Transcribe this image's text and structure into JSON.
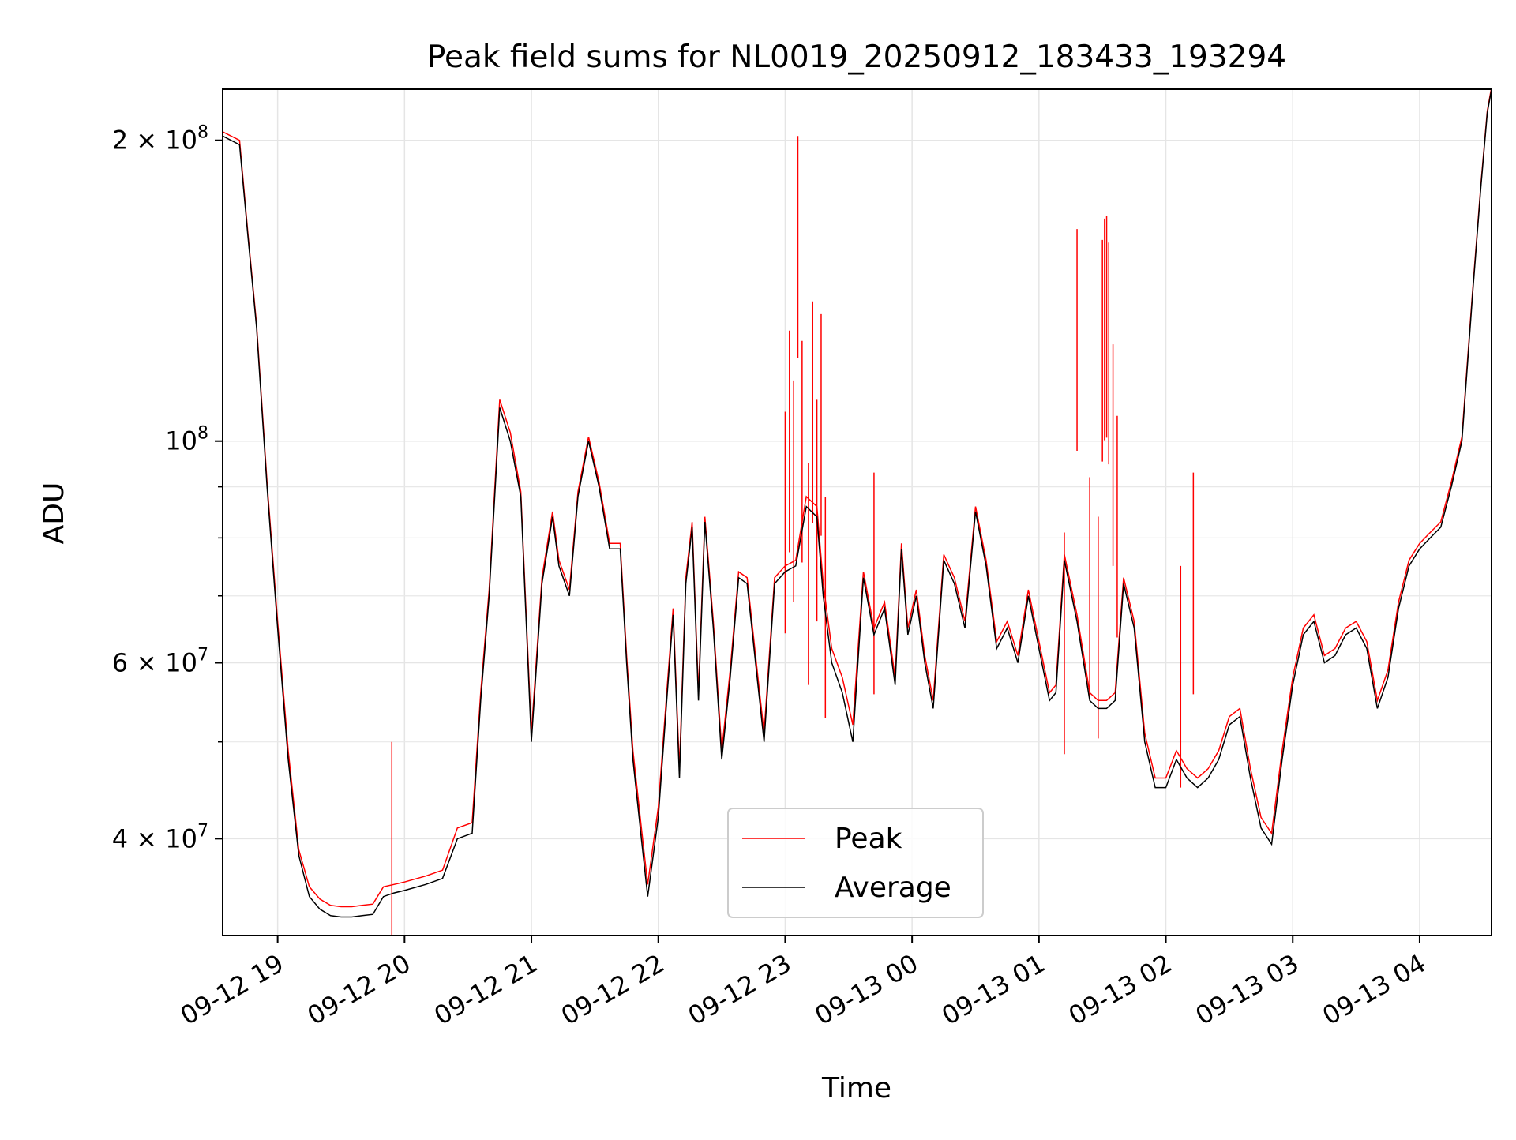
{
  "chart_data": {
    "type": "line",
    "title": "Peak field sums for NL0019_20250912_183433_193294",
    "xlabel": "Time",
    "ylabel": "ADU",
    "yscale": "log",
    "grid": true,
    "legend_position": "lower-center",
    "xlim": [
      "2025-09-12 18:34",
      "2025-09-13 04:34"
    ],
    "ylim": [
      32000000,
      225000000
    ],
    "x_ticks": [
      "09-12 19",
      "09-12 20",
      "09-12 21",
      "09-12 22",
      "09-12 23",
      "09-13 00",
      "09-13 01",
      "09-13 02",
      "09-13 03",
      "09-13 04"
    ],
    "x_tick_values": [
      "2025-09-12 19:00",
      "2025-09-12 20:00",
      "2025-09-12 21:00",
      "2025-09-12 22:00",
      "2025-09-12 23:00",
      "2025-09-13 00:00",
      "2025-09-13 01:00",
      "2025-09-13 02:00",
      "2025-09-13 03:00",
      "2025-09-13 04:00"
    ],
    "y_ticks": [
      {
        "value": 200000000,
        "mant": "2",
        "exp": "8"
      },
      {
        "value": 100000000,
        "mant": "",
        "exp": "8"
      },
      {
        "value": 60000000,
        "mant": "6",
        "exp": "7"
      },
      {
        "value": 40000000,
        "mant": "4",
        "exp": "7"
      }
    ],
    "y_minor_ticks": [
      50000000,
      70000000,
      80000000,
      90000000
    ],
    "colors": {
      "Peak": "#ff0000",
      "Average": "#000000"
    },
    "x": [
      "2025-09-12 18:34",
      "2025-09-12 18:42",
      "2025-09-12 18:46",
      "2025-09-12 18:50",
      "2025-09-12 18:55",
      "2025-09-12 19:00",
      "2025-09-12 19:05",
      "2025-09-12 19:10",
      "2025-09-12 19:15",
      "2025-09-12 19:20",
      "2025-09-12 19:25",
      "2025-09-12 19:30",
      "2025-09-12 19:35",
      "2025-09-12 19:40",
      "2025-09-12 19:45",
      "2025-09-12 19:50",
      "2025-09-12 19:55",
      "2025-09-12 20:00",
      "2025-09-12 20:10",
      "2025-09-12 20:18",
      "2025-09-12 20:25",
      "2025-09-12 20:32",
      "2025-09-12 20:36",
      "2025-09-12 20:40",
      "2025-09-12 20:45",
      "2025-09-12 20:50",
      "2025-09-12 20:55",
      "2025-09-12 21:00",
      "2025-09-12 21:05",
      "2025-09-12 21:10",
      "2025-09-12 21:13",
      "2025-09-12 21:18",
      "2025-09-12 21:22",
      "2025-09-12 21:27",
      "2025-09-12 21:32",
      "2025-09-12 21:37",
      "2025-09-12 21:42",
      "2025-09-12 21:45",
      "2025-09-12 21:48",
      "2025-09-12 21:52",
      "2025-09-12 21:55",
      "2025-09-12 22:00",
      "2025-09-12 22:04",
      "2025-09-12 22:07",
      "2025-09-12 22:10",
      "2025-09-12 22:13",
      "2025-09-12 22:16",
      "2025-09-12 22:19",
      "2025-09-12 22:22",
      "2025-09-12 22:26",
      "2025-09-12 22:30",
      "2025-09-12 22:34",
      "2025-09-12 22:38",
      "2025-09-12 22:42",
      "2025-09-12 22:46",
      "2025-09-12 22:50",
      "2025-09-12 22:55",
      "2025-09-12 23:00",
      "2025-09-12 23:05",
      "2025-09-12 23:10",
      "2025-09-12 23:15",
      "2025-09-12 23:18",
      "2025-09-12 23:22",
      "2025-09-12 23:27",
      "2025-09-12 23:32",
      "2025-09-12 23:37",
      "2025-09-12 23:42",
      "2025-09-12 23:47",
      "2025-09-12 23:52",
      "2025-09-12 23:55",
      "2025-09-12 23:58",
      "2025-09-13 00:02",
      "2025-09-13 00:06",
      "2025-09-13 00:10",
      "2025-09-13 00:15",
      "2025-09-13 00:20",
      "2025-09-13 00:25",
      "2025-09-13 00:30",
      "2025-09-13 00:35",
      "2025-09-13 00:40",
      "2025-09-13 00:45",
      "2025-09-13 00:50",
      "2025-09-13 00:55",
      "2025-09-13 01:00",
      "2025-09-13 01:05",
      "2025-09-13 01:08",
      "2025-09-13 01:12",
      "2025-09-13 01:18",
      "2025-09-13 01:24",
      "2025-09-13 01:28",
      "2025-09-13 01:32",
      "2025-09-13 01:36",
      "2025-09-13 01:40",
      "2025-09-13 01:45",
      "2025-09-13 01:50",
      "2025-09-13 01:55",
      "2025-09-13 02:00",
      "2025-09-13 02:05",
      "2025-09-13 02:10",
      "2025-09-13 02:15",
      "2025-09-13 02:20",
      "2025-09-13 02:25",
      "2025-09-13 02:30",
      "2025-09-13 02:35",
      "2025-09-13 02:40",
      "2025-09-13 02:45",
      "2025-09-13 02:50",
      "2025-09-13 02:55",
      "2025-09-13 03:00",
      "2025-09-13 03:05",
      "2025-09-13 03:10",
      "2025-09-13 03:15",
      "2025-09-13 03:20",
      "2025-09-13 03:25",
      "2025-09-13 03:30",
      "2025-09-13 03:35",
      "2025-09-13 03:40",
      "2025-09-13 03:45",
      "2025-09-13 03:50",
      "2025-09-13 03:55",
      "2025-09-13 04:00",
      "2025-09-13 04:05",
      "2025-09-13 04:10",
      "2025-09-13 04:15",
      "2025-09-13 04:20",
      "2025-09-13 04:25",
      "2025-09-13 04:29",
      "2025-09-13 04:32",
      "2025-09-13 04:34"
    ],
    "series": [
      {
        "name": "Average",
        "values": [
          202000000,
          198000000,
          160000000,
          130000000,
          90000000,
          65000000,
          48000000,
          38500000,
          35000000,
          34000000,
          33500000,
          33400000,
          33400000,
          33500000,
          33600000,
          35000000,
          35300000,
          35500000,
          36000000,
          36500000,
          40000000,
          40500000,
          55000000,
          70000000,
          108000000,
          100000000,
          88000000,
          50000000,
          72000000,
          84000000,
          75000000,
          70000000,
          88000000,
          100000000,
          90000000,
          78000000,
          78000000,
          60000000,
          48000000,
          40000000,
          35000000,
          42000000,
          55000000,
          67000000,
          46000000,
          72000000,
          82000000,
          55000000,
          83000000,
          65000000,
          48000000,
          58000000,
          73000000,
          72000000,
          60000000,
          50000000,
          72000000,
          74000000,
          75000000,
          86000000,
          84000000,
          70000000,
          60000000,
          56000000,
          50000000,
          73000000,
          64000000,
          68000000,
          57000000,
          78000000,
          64000000,
          70000000,
          60000000,
          54000000,
          76000000,
          72000000,
          65000000,
          85000000,
          75000000,
          62000000,
          65000000,
          60000000,
          70000000,
          62000000,
          55000000,
          56000000,
          76000000,
          66000000,
          55000000,
          54000000,
          54000000,
          55000000,
          72000000,
          65000000,
          50000000,
          45000000,
          45000000,
          48000000,
          46000000,
          45000000,
          46000000,
          48000000,
          52000000,
          53000000,
          46000000,
          41000000,
          39500000,
          48000000,
          57000000,
          64000000,
          66000000,
          60000000,
          61000000,
          64000000,
          65000000,
          62000000,
          54000000,
          58000000,
          68000000,
          75000000,
          78000000,
          80000000,
          82000000,
          90000000,
          100000000,
          140000000,
          180000000,
          213000000,
          225000000
        ]
      },
      {
        "name": "Peak",
        "values": [
          204000000,
          200000000,
          161000000,
          131000000,
          91000000,
          66000000,
          49000000,
          39000000,
          35800000,
          34800000,
          34300000,
          34200000,
          34200000,
          34300000,
          34400000,
          35800000,
          36000000,
          36200000,
          36700000,
          37200000,
          41000000,
          41500000,
          56000000,
          71000000,
          110000000,
          102000000,
          89000000,
          51000000,
          73000000,
          85000000,
          76000000,
          71000000,
          89000000,
          101000000,
          91000000,
          79000000,
          79000000,
          61000000,
          49000000,
          41000000,
          36000000,
          43000000,
          56000000,
          68000000,
          47000000,
          73000000,
          83000000,
          56000000,
          84000000,
          66000000,
          49000000,
          59000000,
          74000000,
          73000000,
          61000000,
          51000000,
          73000000,
          75000000,
          76000000,
          88000000,
          86000000,
          72000000,
          62000000,
          58000000,
          52000000,
          74000000,
          65000000,
          69000000,
          58000000,
          79000000,
          65000000,
          71000000,
          61000000,
          55000000,
          77000000,
          73000000,
          66000000,
          86000000,
          76000000,
          63000000,
          66000000,
          61000000,
          71000000,
          63000000,
          56000000,
          57000000,
          77000000,
          67000000,
          56000000,
          55000000,
          55000000,
          56000000,
          73000000,
          66000000,
          51000000,
          46000000,
          46000000,
          49000000,
          47000000,
          46000000,
          47000000,
          49000000,
          53000000,
          54000000,
          47000000,
          42000000,
          40500000,
          49000000,
          58000000,
          65000000,
          67000000,
          61000000,
          62000000,
          65000000,
          66000000,
          63000000,
          55000000,
          59000000,
          69000000,
          76000000,
          79000000,
          81000000,
          83000000,
          91000000,
          101000000,
          141000000,
          181000000,
          214000000,
          226000000
        ]
      }
    ],
    "peak_spikes": [
      {
        "x": "2025-09-12 19:54",
        "y": 50000000
      },
      {
        "x": "2025-09-12 23:00",
        "y": 107000000
      },
      {
        "x": "2025-09-12 23:02",
        "y": 129000000
      },
      {
        "x": "2025-09-12 23:04",
        "y": 115000000
      },
      {
        "x": "2025-09-12 23:06",
        "y": 202000000
      },
      {
        "x": "2025-09-12 23:08",
        "y": 126000000
      },
      {
        "x": "2025-09-12 23:11",
        "y": 95000000
      },
      {
        "x": "2025-09-12 23:13",
        "y": 138000000
      },
      {
        "x": "2025-09-12 23:15",
        "y": 110000000
      },
      {
        "x": "2025-09-12 23:17",
        "y": 134000000
      },
      {
        "x": "2025-09-12 23:19",
        "y": 88000000
      },
      {
        "x": "2025-09-12 23:42",
        "y": 93000000
      },
      {
        "x": "2025-09-13 01:12",
        "y": 81000000
      },
      {
        "x": "2025-09-13 01:18",
        "y": 163000000
      },
      {
        "x": "2025-09-13 01:24",
        "y": 92000000
      },
      {
        "x": "2025-09-13 01:28",
        "y": 84000000
      },
      {
        "x": "2025-09-13 01:30",
        "y": 159000000
      },
      {
        "x": "2025-09-13 01:31",
        "y": 167000000
      },
      {
        "x": "2025-09-13 01:32",
        "y": 168000000
      },
      {
        "x": "2025-09-13 01:33",
        "y": 158000000
      },
      {
        "x": "2025-09-13 01:35",
        "y": 125000000
      },
      {
        "x": "2025-09-13 01:37",
        "y": 106000000
      },
      {
        "x": "2025-09-13 02:07",
        "y": 75000000
      },
      {
        "x": "2025-09-13 02:13",
        "y": 93000000
      }
    ]
  }
}
